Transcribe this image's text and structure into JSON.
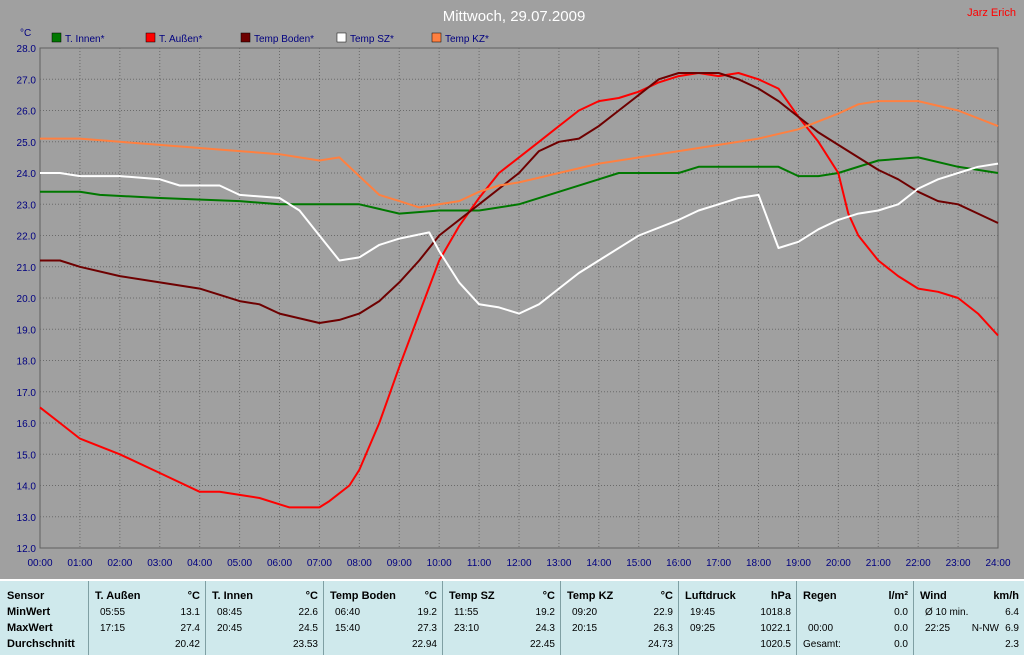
{
  "header": {
    "author": "Jarz Erich"
  },
  "chart_data": {
    "type": "line",
    "title": "Mittwoch, 29.07.2009",
    "ylabel": "°C",
    "ylim": [
      12.0,
      28.0
    ],
    "yticks": [
      "12.0",
      "13.0",
      "14.0",
      "15.0",
      "16.0",
      "17.0",
      "18.0",
      "19.0",
      "20.0",
      "21.0",
      "22.0",
      "23.0",
      "24.0",
      "25.0",
      "26.0",
      "27.0",
      "28.0"
    ],
    "xlim": [
      0,
      24
    ],
    "xticks": [
      "00:00",
      "01:00",
      "02:00",
      "03:00",
      "04:00",
      "05:00",
      "06:00",
      "07:00",
      "08:00",
      "09:00",
      "10:00",
      "11:00",
      "12:00",
      "13:00",
      "14:00",
      "15:00",
      "16:00",
      "17:00",
      "18:00",
      "19:00",
      "20:00",
      "21:00",
      "22:00",
      "23:00",
      "24:00"
    ],
    "grid": true,
    "legend_position": "top",
    "series": [
      {
        "name": "T. Innen*",
        "color": "#007800",
        "points": [
          [
            0,
            23.4
          ],
          [
            1,
            23.4
          ],
          [
            1.5,
            23.3
          ],
          [
            3,
            23.2
          ],
          [
            5,
            23.1
          ],
          [
            6,
            23.0
          ],
          [
            7,
            23.0
          ],
          [
            8,
            23.0
          ],
          [
            9,
            22.7
          ],
          [
            10,
            22.8
          ],
          [
            11,
            22.8
          ],
          [
            12,
            23.0
          ],
          [
            13,
            23.4
          ],
          [
            14,
            23.8
          ],
          [
            14.5,
            24.0
          ],
          [
            15,
            24.0
          ],
          [
            16,
            24.0
          ],
          [
            16.5,
            24.2
          ],
          [
            17,
            24.2
          ],
          [
            18,
            24.2
          ],
          [
            18.5,
            24.2
          ],
          [
            19,
            23.9
          ],
          [
            19.5,
            23.9
          ],
          [
            20,
            24.0
          ],
          [
            21,
            24.4
          ],
          [
            22,
            24.5
          ],
          [
            23,
            24.2
          ],
          [
            24,
            24.0
          ]
        ]
      },
      {
        "name": "T. Außen*",
        "color": "#ff0000",
        "points": [
          [
            0,
            16.5
          ],
          [
            0.5,
            16.0
          ],
          [
            1,
            15.5
          ],
          [
            2,
            15.0
          ],
          [
            3,
            14.4
          ],
          [
            4,
            13.8
          ],
          [
            4.5,
            13.8
          ],
          [
            5,
            13.7
          ],
          [
            5.5,
            13.6
          ],
          [
            6,
            13.4
          ],
          [
            6.25,
            13.3
          ],
          [
            7,
            13.3
          ],
          [
            7.25,
            13.5
          ],
          [
            7.75,
            14.0
          ],
          [
            8,
            14.5
          ],
          [
            8.5,
            16.0
          ],
          [
            9,
            17.8
          ],
          [
            9.5,
            19.5
          ],
          [
            10,
            21.2
          ],
          [
            10.5,
            22.3
          ],
          [
            11,
            23.2
          ],
          [
            11.5,
            24.0
          ],
          [
            12,
            24.5
          ],
          [
            12.5,
            25.0
          ],
          [
            13,
            25.5
          ],
          [
            13.5,
            26.0
          ],
          [
            14,
            26.3
          ],
          [
            14.5,
            26.4
          ],
          [
            15,
            26.6
          ],
          [
            15.5,
            26.9
          ],
          [
            16,
            27.1
          ],
          [
            16.5,
            27.2
          ],
          [
            17,
            27.1
          ],
          [
            17.5,
            27.2
          ],
          [
            18,
            27.0
          ],
          [
            18.5,
            26.7
          ],
          [
            19,
            25.8
          ],
          [
            19.5,
            25.0
          ],
          [
            20,
            24.0
          ],
          [
            20.25,
            22.7
          ],
          [
            20.5,
            22.0
          ],
          [
            21,
            21.2
          ],
          [
            21.5,
            20.7
          ],
          [
            22,
            20.3
          ],
          [
            22.5,
            20.2
          ],
          [
            23,
            20.0
          ],
          [
            23.5,
            19.5
          ],
          [
            24,
            18.8
          ]
        ]
      },
      {
        "name": "Temp Boden*",
        "color": "#6e0000",
        "points": [
          [
            0,
            21.2
          ],
          [
            0.5,
            21.2
          ],
          [
            1,
            21.0
          ],
          [
            2,
            20.7
          ],
          [
            3,
            20.5
          ],
          [
            4,
            20.3
          ],
          [
            5,
            19.9
          ],
          [
            5.5,
            19.8
          ],
          [
            6,
            19.5
          ],
          [
            7,
            19.2
          ],
          [
            7.5,
            19.3
          ],
          [
            8,
            19.5
          ],
          [
            8.5,
            19.9
          ],
          [
            9,
            20.5
          ],
          [
            9.5,
            21.2
          ],
          [
            10,
            22.0
          ],
          [
            11,
            23.0
          ],
          [
            12,
            24.0
          ],
          [
            12.5,
            24.7
          ],
          [
            13,
            25.0
          ],
          [
            13.5,
            25.1
          ],
          [
            14,
            25.5
          ],
          [
            14.5,
            26.0
          ],
          [
            15,
            26.5
          ],
          [
            15.5,
            27.0
          ],
          [
            16,
            27.2
          ],
          [
            16.5,
            27.2
          ],
          [
            17,
            27.2
          ],
          [
            17.5,
            27.0
          ],
          [
            18,
            26.7
          ],
          [
            18.5,
            26.3
          ],
          [
            19,
            25.8
          ],
          [
            19.5,
            25.3
          ],
          [
            20,
            24.9
          ],
          [
            20.5,
            24.5
          ],
          [
            21,
            24.1
          ],
          [
            21.5,
            23.8
          ],
          [
            22,
            23.4
          ],
          [
            22.5,
            23.1
          ],
          [
            23,
            23.0
          ],
          [
            23.5,
            22.7
          ],
          [
            24,
            22.4
          ]
        ]
      },
      {
        "name": "Temp SZ*",
        "color": "#ffffff",
        "points": [
          [
            0,
            24.0
          ],
          [
            0.5,
            24.0
          ],
          [
            1,
            23.9
          ],
          [
            2,
            23.9
          ],
          [
            3,
            23.8
          ],
          [
            3.5,
            23.6
          ],
          [
            4,
            23.6
          ],
          [
            4.5,
            23.6
          ],
          [
            5,
            23.3
          ],
          [
            6,
            23.2
          ],
          [
            6.5,
            22.8
          ],
          [
            7,
            22.0
          ],
          [
            7.5,
            21.2
          ],
          [
            8,
            21.3
          ],
          [
            8.5,
            21.7
          ],
          [
            9,
            21.9
          ],
          [
            9.75,
            22.1
          ],
          [
            10,
            21.5
          ],
          [
            10.5,
            20.5
          ],
          [
            11,
            19.8
          ],
          [
            11.5,
            19.7
          ],
          [
            12,
            19.5
          ],
          [
            12.5,
            19.8
          ],
          [
            13,
            20.3
          ],
          [
            13.5,
            20.8
          ],
          [
            14,
            21.2
          ],
          [
            15,
            22.0
          ],
          [
            16,
            22.5
          ],
          [
            16.5,
            22.8
          ],
          [
            17,
            23.0
          ],
          [
            17.5,
            23.2
          ],
          [
            18,
            23.3
          ],
          [
            18.5,
            21.6
          ],
          [
            19,
            21.8
          ],
          [
            19.5,
            22.2
          ],
          [
            20,
            22.5
          ],
          [
            20.5,
            22.7
          ],
          [
            21,
            22.8
          ],
          [
            21.5,
            23.0
          ],
          [
            22,
            23.5
          ],
          [
            22.5,
            23.8
          ],
          [
            23,
            24.0
          ],
          [
            23.5,
            24.2
          ],
          [
            24,
            24.3
          ]
        ]
      },
      {
        "name": "Temp KZ*",
        "color": "#ff8040",
        "points": [
          [
            0,
            25.1
          ],
          [
            1,
            25.1
          ],
          [
            2,
            25.0
          ],
          [
            3,
            24.9
          ],
          [
            4,
            24.8
          ],
          [
            5,
            24.7
          ],
          [
            6,
            24.6
          ],
          [
            6.5,
            24.5
          ],
          [
            7,
            24.4
          ],
          [
            7.5,
            24.5
          ],
          [
            8,
            23.9
          ],
          [
            8.5,
            23.3
          ],
          [
            9,
            23.1
          ],
          [
            9.5,
            22.9
          ],
          [
            10,
            23.0
          ],
          [
            10.5,
            23.1
          ],
          [
            11,
            23.4
          ],
          [
            11.5,
            23.6
          ],
          [
            12,
            23.7
          ],
          [
            13,
            24.0
          ],
          [
            14,
            24.3
          ],
          [
            15,
            24.5
          ],
          [
            16,
            24.7
          ],
          [
            17,
            24.9
          ],
          [
            18,
            25.1
          ],
          [
            19,
            25.4
          ],
          [
            20,
            25.9
          ],
          [
            20.5,
            26.2
          ],
          [
            21,
            26.3
          ],
          [
            22,
            26.3
          ],
          [
            23,
            26.0
          ],
          [
            24,
            25.5
          ]
        ]
      }
    ]
  },
  "summary": {
    "row_labels": {
      "sensor": "Sensor",
      "min": "MinWert",
      "max": "MaxWert",
      "avg": "Durchschnitt"
    },
    "columns": [
      {
        "name": "T. Außen",
        "unit": "°C",
        "min_time": "05:55",
        "min_val": "13.1",
        "max_time": "17:15",
        "max_val": "27.4",
        "avg": "20.42"
      },
      {
        "name": "T. Innen",
        "unit": "°C",
        "min_time": "08:45",
        "min_val": "22.6",
        "max_time": "20:45",
        "max_val": "24.5",
        "avg": "23.53"
      },
      {
        "name": "Temp Boden",
        "unit": "°C",
        "min_time": "06:40",
        "min_val": "19.2",
        "max_time": "15:40",
        "max_val": "27.3",
        "avg": "22.94"
      },
      {
        "name": "Temp SZ",
        "unit": "°C",
        "min_time": "11:55",
        "min_val": "19.2",
        "max_time": "23:10",
        "max_val": "24.3",
        "avg": "22.45"
      },
      {
        "name": "Temp KZ",
        "unit": "°C",
        "min_time": "09:20",
        "min_val": "22.9",
        "max_time": "20:15",
        "max_val": "26.3",
        "avg": "24.73"
      },
      {
        "name": "Luftdruck",
        "unit": "hPa",
        "min_time": "19:45",
        "min_val": "1018.8",
        "max_time": "09:25",
        "max_val": "1022.1",
        "avg": "1020.5"
      },
      {
        "name": "Regen",
        "unit": "l/m²",
        "min_time": "",
        "min_val": "0.0",
        "max_time": "00:00",
        "max_val": "0.0",
        "avg_label": "Gesamt:",
        "avg": "0.0"
      },
      {
        "name": "Wind",
        "unit": "km/h",
        "min_time": "Ø 10 min.",
        "min_val": "6.4",
        "max_time": "22:25",
        "max_extra": "N-NW",
        "max_val": "6.9",
        "avg": "2.3"
      }
    ]
  }
}
